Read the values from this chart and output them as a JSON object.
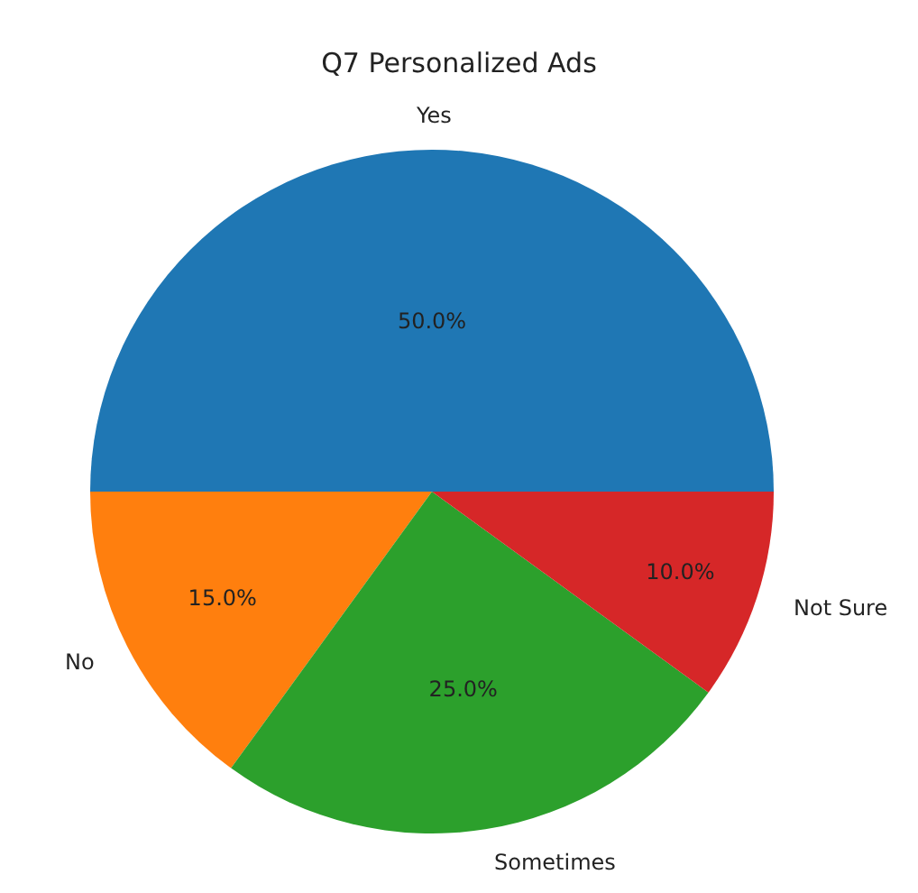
{
  "chart_data": {
    "type": "pie",
    "title": "Q7 Personalized Ads",
    "categories": [
      "Yes",
      "No",
      "Sometimes",
      "Not Sure"
    ],
    "values": [
      50,
      15,
      25,
      10
    ],
    "colors": [
      "#1f77b4",
      "#ff7f0e",
      "#2ca02c",
      "#d62728"
    ],
    "value_labels": [
      "50.0%",
      "15.0%",
      "25.0%",
      "10.0%"
    ]
  }
}
